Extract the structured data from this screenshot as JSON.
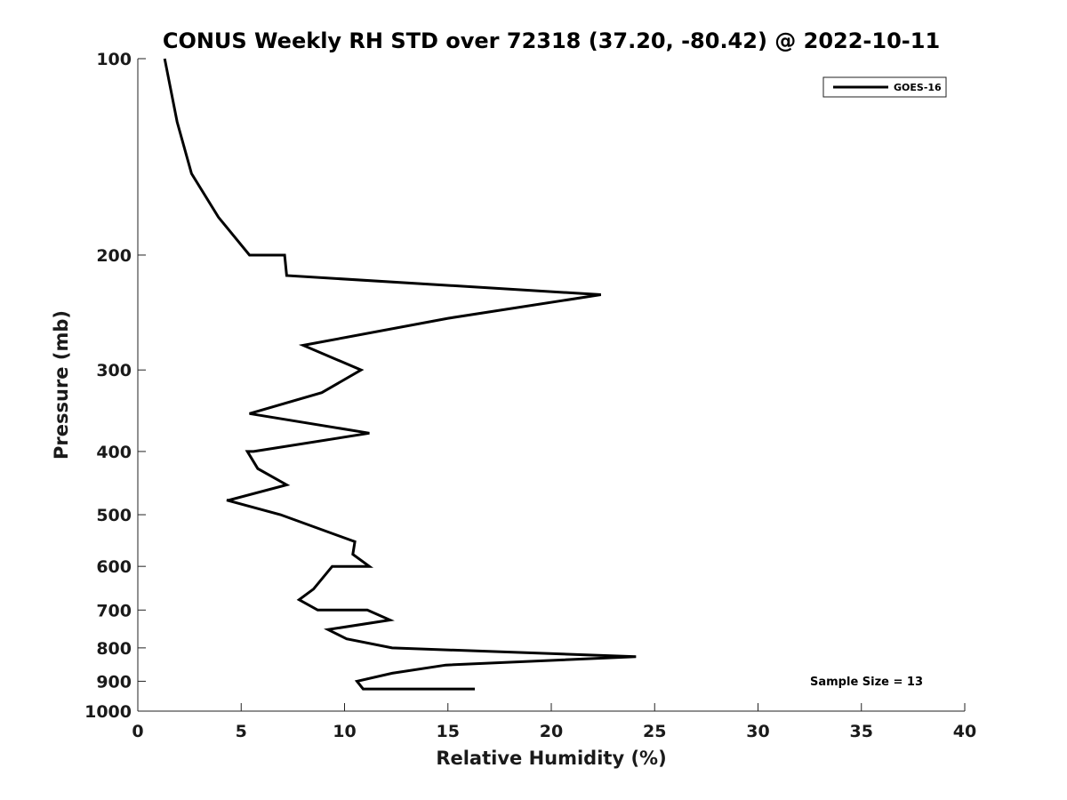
{
  "chart_data": {
    "type": "line",
    "title": "CONUS Weekly RH STD over 72318 (37.20, -80.42) @ 2022-10-11",
    "xlabel": "Relative Humidity (%)",
    "ylabel": "Pressure (mb)",
    "xlim": [
      0,
      40
    ],
    "ylim": [
      100,
      1000
    ],
    "yscale": "log",
    "y_reversed": true,
    "grid": false,
    "x_ticks": [
      "0",
      "5",
      "10",
      "15",
      "20",
      "25",
      "30",
      "35",
      "40"
    ],
    "y_ticks": [
      "100",
      "200",
      "300",
      "400",
      "500",
      "600",
      "700",
      "800",
      "900",
      "1000"
    ],
    "legend": {
      "position": "top-right",
      "entries": [
        "GOES-16"
      ]
    },
    "annotation": "Sample Size = 13",
    "series": [
      {
        "name": "GOES-16",
        "color": "#000000",
        "points": [
          {
            "x": 1.3,
            "p": 100
          },
          {
            "x": 1.9,
            "p": 125
          },
          {
            "x": 2.6,
            "p": 150
          },
          {
            "x": 3.9,
            "p": 175
          },
          {
            "x": 5.4,
            "p": 200
          },
          {
            "x": 7.1,
            "p": 200
          },
          {
            "x": 7.2,
            "p": 215
          },
          {
            "x": 22.4,
            "p": 230
          },
          {
            "x": 15.0,
            "p": 250
          },
          {
            "x": 8.0,
            "p": 275
          },
          {
            "x": 10.8,
            "p": 300
          },
          {
            "x": 8.9,
            "p": 325
          },
          {
            "x": 5.4,
            "p": 350
          },
          {
            "x": 11.2,
            "p": 375
          },
          {
            "x": 5.6,
            "p": 400
          },
          {
            "x": 5.3,
            "p": 400
          },
          {
            "x": 5.8,
            "p": 425
          },
          {
            "x": 7.2,
            "p": 450
          },
          {
            "x": 4.4,
            "p": 475
          },
          {
            "x": 4.3,
            "p": 475
          },
          {
            "x": 6.9,
            "p": 500
          },
          {
            "x": 10.5,
            "p": 550
          },
          {
            "x": 10.4,
            "p": 575
          },
          {
            "x": 11.2,
            "p": 600
          },
          {
            "x": 9.4,
            "p": 600
          },
          {
            "x": 8.5,
            "p": 650
          },
          {
            "x": 7.8,
            "p": 675
          },
          {
            "x": 8.7,
            "p": 700
          },
          {
            "x": 11.1,
            "p": 700
          },
          {
            "x": 12.2,
            "p": 725
          },
          {
            "x": 9.2,
            "p": 750
          },
          {
            "x": 10.1,
            "p": 775
          },
          {
            "x": 12.3,
            "p": 800
          },
          {
            "x": 24.1,
            "p": 825
          },
          {
            "x": 14.9,
            "p": 850
          },
          {
            "x": 12.3,
            "p": 875
          },
          {
            "x": 10.6,
            "p": 900
          },
          {
            "x": 10.9,
            "p": 925
          },
          {
            "x": 16.3,
            "p": 925
          }
        ]
      }
    ]
  }
}
